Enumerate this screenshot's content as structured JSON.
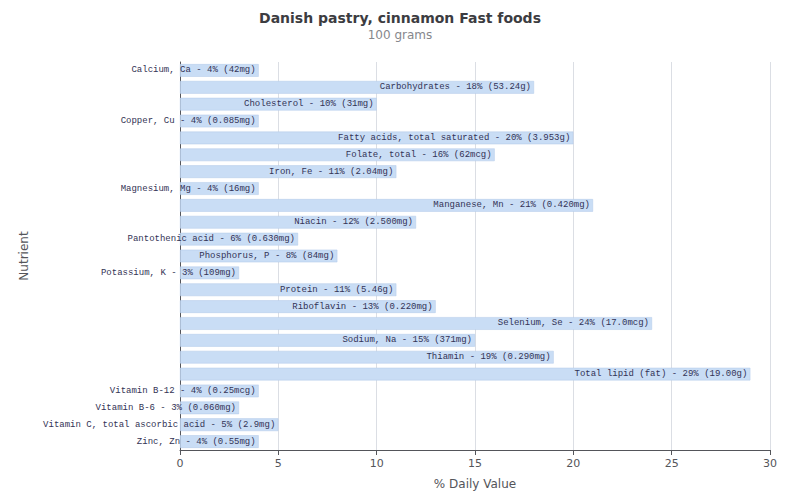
{
  "chart_data": {
    "type": "bar",
    "orientation": "horizontal",
    "title": "Danish pastry, cinnamon Fast foods",
    "subtitle": "100 grams",
    "xlabel": "% Daily Value",
    "ylabel": "Nutrient",
    "categories": [
      "Calcium, Ca - 4% (42mg)",
      "Carbohydrates - 18% (53.24g)",
      "Cholesterol - 10% (31mg)",
      "Copper, Cu - 4% (0.085mg)",
      "Fatty acids, total saturated - 20% (3.953g)",
      "Folate, total - 16% (62mcg)",
      "Iron, Fe - 11% (2.04mg)",
      "Magnesium, Mg - 4% (16mg)",
      "Manganese, Mn - 21% (0.420mg)",
      "Niacin - 12% (2.500mg)",
      "Pantothenic acid - 6% (0.630mg)",
      "Phosphorus, P - 8% (84mg)",
      "Potassium, K - 3% (109mg)",
      "Protein - 11% (5.46g)",
      "Riboflavin - 13% (0.220mg)",
      "Selenium, Se - 24% (17.0mcg)",
      "Sodium, Na - 15% (371mg)",
      "Thiamin - 19% (0.290mg)",
      "Total lipid (fat) - 29% (19.00g)",
      "Vitamin B-12 - 4% (0.25mcg)",
      "Vitamin B-6 - 3% (0.060mg)",
      "Vitamin C, total ascorbic acid - 5% (2.9mg)",
      "Zinc, Zn - 4% (0.55mg)"
    ],
    "values": [
      4,
      18,
      10,
      4,
      20,
      16,
      11,
      4,
      21,
      12,
      6,
      8,
      3,
      11,
      13,
      24,
      15,
      19,
      29,
      4,
      3,
      5,
      4
    ],
    "color": "#c9ddf5",
    "xlim": [
      0,
      30
    ],
    "xticks": [
      0,
      5,
      10,
      15,
      20,
      25,
      30
    ],
    "grid": true,
    "tick_labels": "x"
  }
}
